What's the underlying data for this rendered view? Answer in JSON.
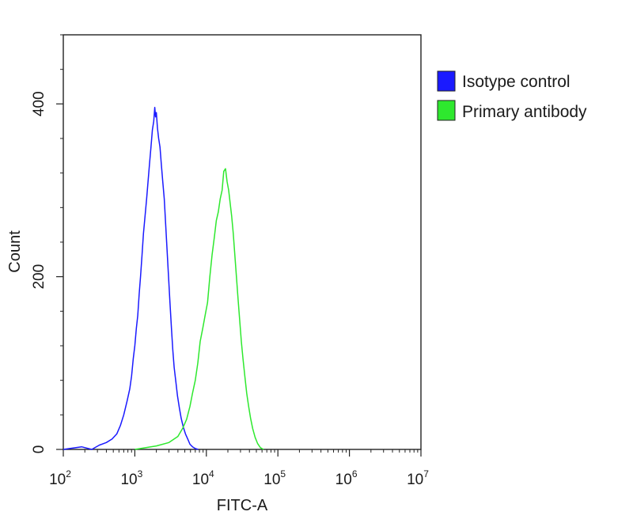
{
  "chart_data": {
    "type": "histogram",
    "xlabel": "FITC-A",
    "ylabel": "Count",
    "x_scale": "log10",
    "xlim": [
      100,
      10000000
    ],
    "ylim": [
      0,
      480
    ],
    "x_ticks": [
      {
        "value": 100,
        "base": "10",
        "exp": "2"
      },
      {
        "value": 1000,
        "base": "10",
        "exp": "3"
      },
      {
        "value": 10000,
        "base": "10",
        "exp": "4"
      },
      {
        "value": 100000,
        "base": "10",
        "exp": "5"
      },
      {
        "value": 1000000,
        "base": "10",
        "exp": "6"
      },
      {
        "value": 10000000,
        "base": "10",
        "exp": "7"
      }
    ],
    "y_ticks": [
      {
        "value": 0,
        "label": "0"
      },
      {
        "value": 200,
        "label": "200"
      },
      {
        "value": 400,
        "label": "400"
      }
    ],
    "legend_position": "right",
    "series": [
      {
        "name": "Isotype control",
        "color": "#1a1aff",
        "x": [
          100,
          180,
          250,
          320,
          400,
          480,
          560,
          630,
          700,
          780,
          850,
          900,
          950,
          1000,
          1050,
          1100,
          1150,
          1200,
          1260,
          1320,
          1390,
          1460,
          1530,
          1600,
          1680,
          1760,
          1840,
          1900,
          1950,
          2000,
          2070,
          2150,
          2250,
          2350,
          2460,
          2580,
          2700,
          2830,
          2960,
          3100,
          3250,
          3400,
          3550,
          3750,
          3950,
          4200,
          4450,
          4750,
          5100,
          5500,
          5900,
          6400,
          7000,
          7700
        ],
        "y": [
          0,
          3,
          0,
          5,
          8,
          12,
          18,
          28,
          40,
          56,
          70,
          85,
          105,
          120,
          140,
          155,
          180,
          200,
          225,
          250,
          270,
          290,
          310,
          330,
          350,
          370,
          380,
          396,
          385,
          390,
          372,
          360,
          350,
          330,
          310,
          290,
          260,
          230,
          200,
          170,
          140,
          115,
          95,
          78,
          62,
          48,
          36,
          26,
          18,
          12,
          6,
          3,
          1,
          0
        ]
      },
      {
        "name": "Primary antibody",
        "color": "#2ee82e",
        "x": [
          1000,
          2000,
          3000,
          4000,
          4700,
          5300,
          5900,
          6400,
          7000,
          7600,
          8200,
          8900,
          9600,
          10400,
          11200,
          12000,
          12900,
          13800,
          14700,
          15600,
          16600,
          17500,
          18500,
          19500,
          20500,
          21500,
          22600,
          23800,
          25000,
          26300,
          27700,
          29200,
          30800,
          32500,
          34500,
          36700,
          39000,
          41500,
          44500,
          48000,
          52000,
          57000,
          63000
        ],
        "y": [
          0,
          4,
          8,
          15,
          25,
          35,
          50,
          65,
          80,
          100,
          125,
          140,
          155,
          170,
          200,
          225,
          245,
          265,
          275,
          290,
          300,
          322,
          325,
          310,
          300,
          285,
          270,
          250,
          225,
          200,
          175,
          150,
          125,
          105,
          85,
          65,
          50,
          36,
          24,
          14,
          7,
          2,
          0
        ]
      }
    ]
  }
}
